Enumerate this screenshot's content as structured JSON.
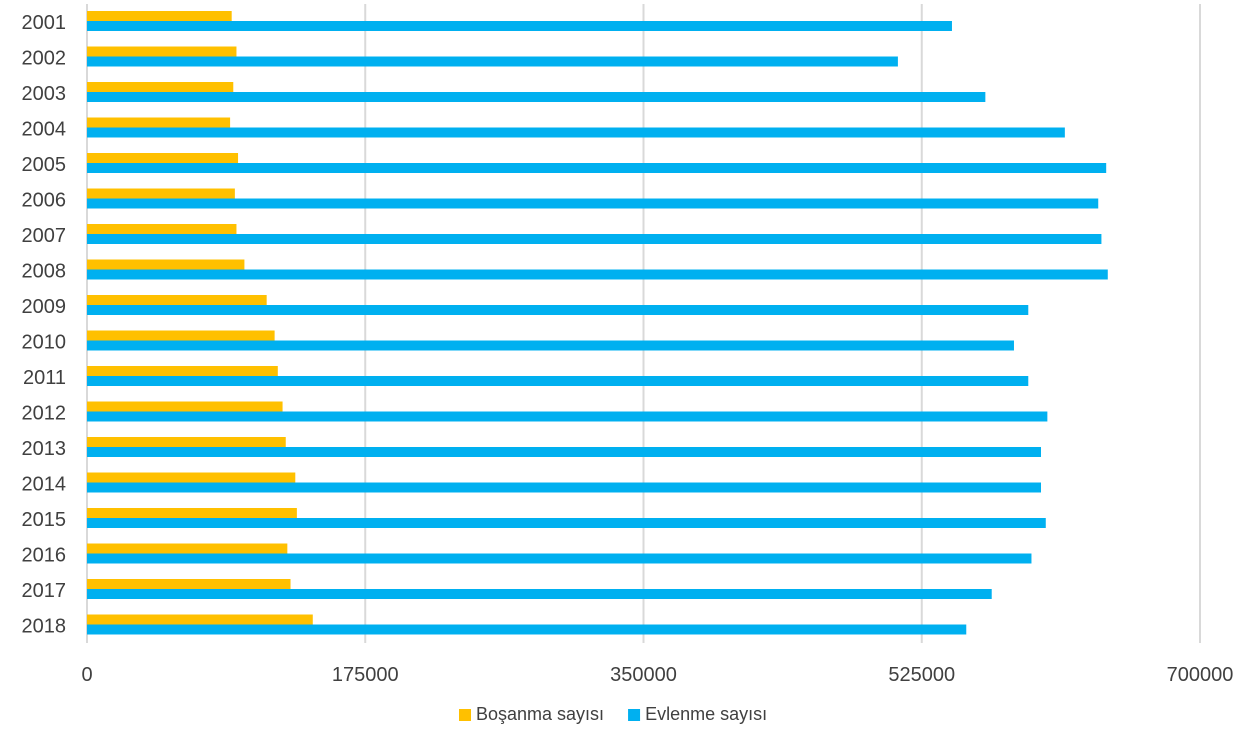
{
  "chart_data": {
    "type": "bar",
    "orientation": "horizontal",
    "title": "",
    "xlabel": "",
    "ylabel": "",
    "categories": [
      "2001",
      "2002",
      "2003",
      "2004",
      "2005",
      "2006",
      "2007",
      "2008",
      "2009",
      "2010",
      "2011",
      "2012",
      "2013",
      "2014",
      "2015",
      "2016",
      "2017",
      "2018"
    ],
    "series": [
      {
        "name": "Boşanma sayısı",
        "color": "#FFC000",
        "values": [
          91000,
          94000,
          92000,
          90000,
          95000,
          93000,
          94000,
          99000,
          113000,
          118000,
          120000,
          123000,
          125000,
          131000,
          132000,
          126000,
          128000,
          142000
        ]
      },
      {
        "name": "Evlenme sayısı",
        "color": "#00B0F0",
        "values": [
          544000,
          510000,
          565000,
          615000,
          641000,
          636000,
          638000,
          642000,
          592000,
          583000,
          592000,
          604000,
          600000,
          600000,
          603000,
          594000,
          569000,
          553000
        ]
      }
    ],
    "xlim": [
      0,
      700000
    ],
    "x_ticks": [
      "0",
      "175000",
      "350000",
      "525000",
      "700000"
    ],
    "x_tick_values": [
      0,
      175000,
      350000,
      525000,
      700000
    ],
    "grid": "vertical",
    "legend_position": "bottom"
  }
}
